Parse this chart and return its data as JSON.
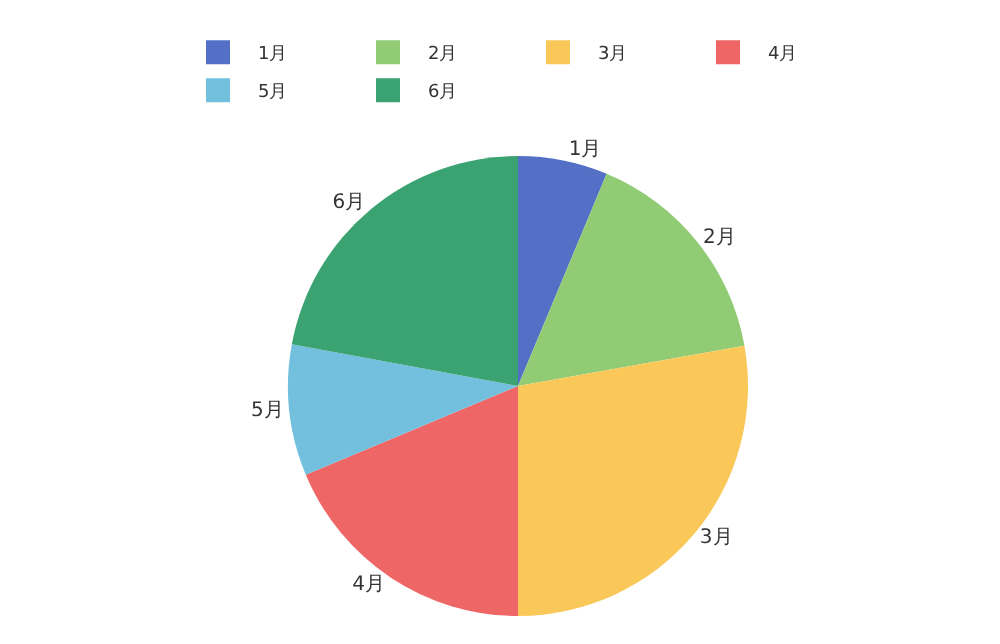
{
  "chart_data": {
    "type": "pie",
    "categories": [
      "1月",
      "2月",
      "3月",
      "4月",
      "5月",
      "6月"
    ],
    "values": [
      6.3,
      15.9,
      27.8,
      18.7,
      9.2,
      22.1
    ],
    "colors": [
      "#5470c6",
      "#91cc75",
      "#fac858",
      "#ee6666",
      "#73c0de",
      "#3ba272"
    ],
    "legend": "top"
  }
}
